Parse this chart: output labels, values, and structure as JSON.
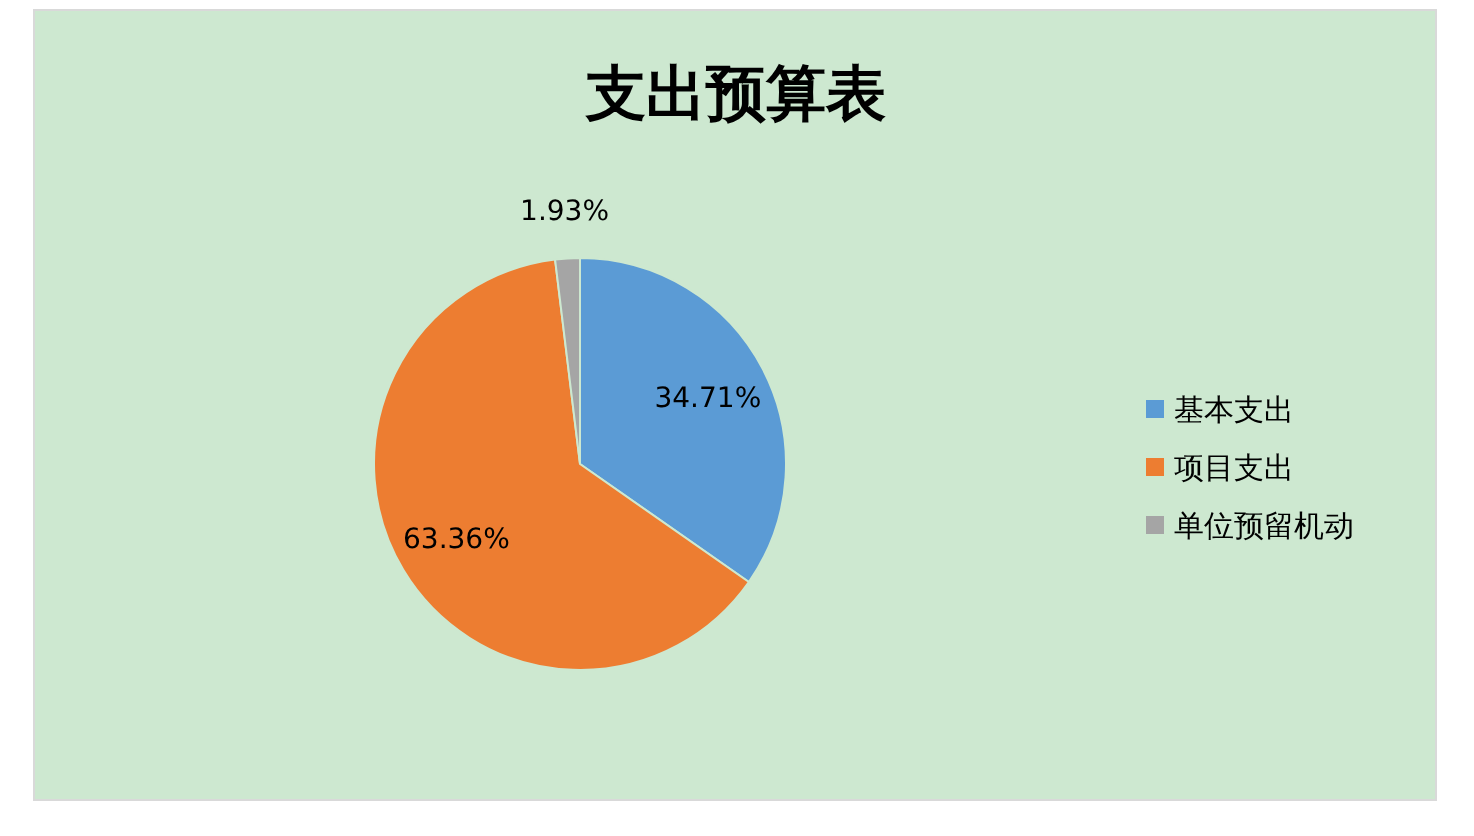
{
  "chart_data": {
    "type": "pie",
    "title": "支出预算表",
    "categories": [
      "基本支出",
      "项目支出",
      "单位预留机动"
    ],
    "values": [
      34.71,
      63.36,
      1.93
    ],
    "colors": [
      "#5b9bd5",
      "#ed7d31",
      "#a5a5a5"
    ],
    "value_labels": [
      "34.71%",
      "63.36%",
      "1.93%"
    ],
    "legend": "right"
  }
}
